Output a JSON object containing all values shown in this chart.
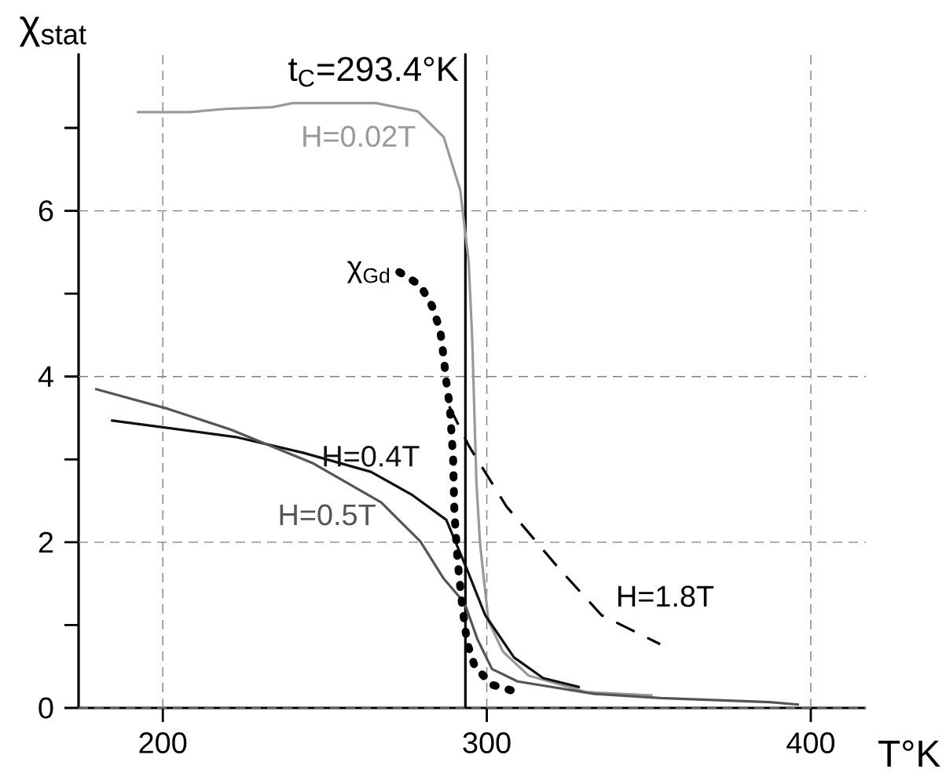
{
  "chart_data": {
    "type": "line",
    "xlabel": "T°K",
    "ylabel": "χ$_{stat}$",
    "xlim": [
      174,
      417
    ],
    "ylim": [
      0,
      7.9
    ],
    "xticks": [
      200,
      300,
      400
    ],
    "yticks": [
      0,
      {
        "value": 1,
        "label": null
      },
      2,
      {
        "value": 3,
        "label": null
      },
      4,
      {
        "value": 5,
        "label": null
      },
      6,
      {
        "value": 7,
        "label": null
      }
    ],
    "grid": true,
    "ref_lines": [
      {
        "axis": "x",
        "value": 293.4,
        "label": "t$_{C}$=293.4°K",
        "color": "#000000"
      }
    ],
    "series": [
      {
        "name": "H=0.02T",
        "color": "#999999",
        "line_style": "solid",
        "x": [
          192,
          208,
          219.3,
          233.7,
          240.1,
          265.8,
          278.7,
          286.7,
          291.8,
          294.4,
          295.5,
          296.8,
          297.9,
          300.5,
          305,
          312.9,
          330.9,
          351.2
        ],
        "values": [
          7.19,
          7.19,
          7.23,
          7.25,
          7.3,
          7.3,
          7.2,
          6.89,
          6.25,
          5.39,
          4.45,
          2.72,
          1.99,
          1.05,
          0.68,
          0.39,
          0.19,
          0.15
        ]
      },
      {
        "name": "H=0.4T",
        "color": "#111111",
        "line_style": "solid",
        "x": [
          184,
          222.5,
          243.3,
          264.2,
          277,
          287.5,
          293.9,
          299.5,
          308.4,
          317.4,
          328.7
        ],
        "values": [
          3.47,
          3.27,
          3.08,
          2.85,
          2.57,
          2.27,
          1.67,
          1.12,
          0.61,
          0.36,
          0.25
        ]
      },
      {
        "name": "H=0.5T",
        "color": "#555555",
        "line_style": "solid",
        "x": [
          179.1,
          201.6,
          220.9,
          246.5,
          267.4,
          279.5,
          286.7,
          293.1,
          297.1,
          301.6,
          309.5,
          333.2,
          353.5,
          387.4,
          396.4
        ],
        "values": [
          3.85,
          3.61,
          3.36,
          2.95,
          2.48,
          2.01,
          1.56,
          1.27,
          0.83,
          0.47,
          0.32,
          0.17,
          0.12,
          0.07,
          0.04
        ]
      },
      {
        "name": "H=1.8T",
        "color": "#000000",
        "line_style": "dashed",
        "x": [
          288.4,
          294.5,
          306.1,
          321.9,
          335.4,
          353.5
        ],
        "values": [
          3.64,
          3.16,
          2.43,
          1.7,
          1.12,
          0.77
        ]
      },
      {
        "name": "χ$_{Gd}$",
        "color": "#000000",
        "line_style": "dotted",
        "x": [
          273,
          279.5,
          283.1,
          285.6,
          286.7,
          287.5,
          288.6,
          289.6,
          290,
          291,
          292.3,
          293.9,
          296.3,
          301.6,
          309.5
        ],
        "values": [
          5.26,
          5.1,
          4.85,
          4.56,
          4.23,
          3.94,
          3.63,
          3.01,
          2.36,
          1.77,
          1.27,
          0.79,
          0.5,
          0.28,
          0.19
        ]
      }
    ]
  }
}
